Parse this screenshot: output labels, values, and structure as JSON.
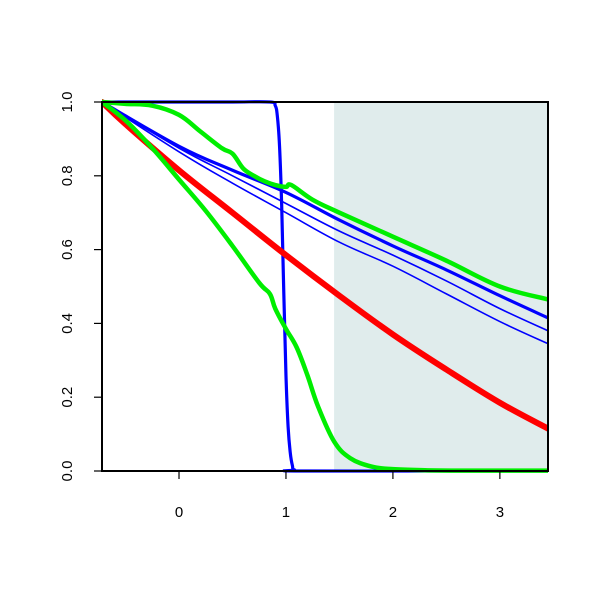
{
  "chart_data": {
    "type": "line",
    "title": "",
    "xlabel": "",
    "ylabel": "",
    "xlim": [
      -0.72,
      3.45
    ],
    "ylim": [
      0.0,
      1.0
    ],
    "x_ticks": [
      0,
      1,
      2,
      3
    ],
    "x_tick_labels": [
      "0",
      "1",
      "2",
      "3"
    ],
    "y_ticks": [
      0.0,
      0.2,
      0.4,
      0.6,
      0.8,
      1.0
    ],
    "y_tick_labels": [
      "0.0",
      "0.2",
      "0.4",
      "0.6",
      "0.8",
      "1.0"
    ],
    "grid": false,
    "legend": "none",
    "shaded_region": {
      "x_start": 1.45,
      "x_end": 3.45,
      "color": "#e0ecec"
    },
    "series": [
      {
        "color": "#0000ff",
        "width": 1.6,
        "x": [
          -0.72,
          0.0,
          0.5,
          1.0,
          1.5,
          2.0,
          2.5,
          3.0,
          3.45
        ],
        "y": [
          1.0,
          0.865,
          0.78,
          0.7,
          0.62,
          0.555,
          0.48,
          0.405,
          0.345
        ]
      },
      {
        "color": "#0000ff",
        "width": 1.6,
        "x": [
          -0.72,
          0.0,
          0.5,
          1.0,
          1.5,
          2.0,
          2.5,
          3.0,
          3.45
        ],
        "y": [
          1.0,
          0.875,
          0.8,
          0.725,
          0.65,
          0.585,
          0.515,
          0.44,
          0.38
        ]
      },
      {
        "color": "#0000ff",
        "width": 3.2,
        "x": [
          -0.72,
          0.0,
          0.5,
          1.0,
          1.5,
          2.0,
          2.5,
          3.0,
          3.45
        ],
        "y": [
          1.0,
          0.88,
          0.815,
          0.755,
          0.68,
          0.61,
          0.545,
          0.475,
          0.415
        ]
      },
      {
        "color": "#0000ff",
        "width": 3.2,
        "x": [
          -0.72,
          0.0,
          0.5,
          0.85,
          0.9,
          0.92,
          0.94,
          0.96,
          0.98,
          1.0,
          1.02,
          1.04,
          1.06,
          1.08,
          1.2,
          3.45
        ],
        "y": [
          1.0,
          1.0,
          1.0,
          1.0,
          0.99,
          0.96,
          0.88,
          0.72,
          0.48,
          0.26,
          0.12,
          0.05,
          0.015,
          0.003,
          0.0,
          0.0
        ]
      },
      {
        "color": "#ff0000",
        "width": 6,
        "x": [
          -0.72,
          -0.5,
          0.0,
          0.5,
          1.0,
          1.5,
          2.0,
          2.5,
          3.0,
          3.45
        ],
        "y": [
          1.0,
          0.94,
          0.815,
          0.7,
          0.585,
          0.475,
          0.37,
          0.275,
          0.185,
          0.115
        ]
      },
      {
        "color": "#00ee00",
        "width": 4.5,
        "x": [
          -0.72,
          -0.5,
          -0.25,
          0.0,
          0.2,
          0.4,
          0.5,
          0.6,
          0.7,
          0.8,
          0.9,
          1.0,
          1.05,
          1.25,
          1.5,
          2.0,
          2.5,
          3.0,
          3.45
        ],
        "y": [
          1.0,
          0.995,
          0.99,
          0.965,
          0.92,
          0.875,
          0.86,
          0.82,
          0.8,
          0.785,
          0.775,
          0.77,
          0.775,
          0.735,
          0.7,
          0.635,
          0.57,
          0.5,
          0.465
        ]
      },
      {
        "color": "#00ee00",
        "width": 4.5,
        "x": [
          -0.72,
          -0.5,
          -0.25,
          0.0,
          0.25,
          0.5,
          0.75,
          0.85,
          0.9,
          1.0,
          1.1,
          1.2,
          1.3,
          1.45,
          1.6,
          1.8,
          2.0,
          2.3,
          2.6,
          3.0,
          3.45
        ],
        "y": [
          1.0,
          0.95,
          0.875,
          0.79,
          0.705,
          0.61,
          0.51,
          0.48,
          0.44,
          0.385,
          0.335,
          0.26,
          0.175,
          0.08,
          0.035,
          0.012,
          0.005,
          0.002,
          0.001,
          0.001,
          0.001
        ]
      }
    ]
  }
}
